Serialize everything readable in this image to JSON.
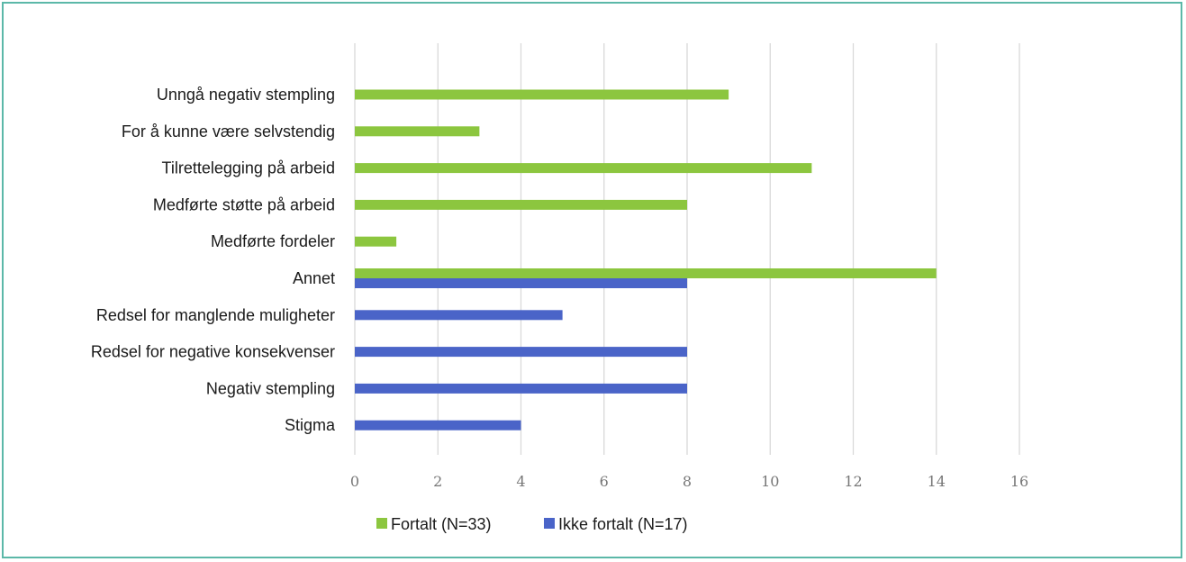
{
  "chart_data": {
    "type": "bar",
    "orientation": "horizontal",
    "categories": [
      "Unngå negativ stempling",
      "For å kunne være selvstendig",
      "Tilrettelegging på arbeid",
      "Medførte støtte på arbeid",
      "Medførte fordeler",
      "Annet",
      "Redsel for manglende muligheter",
      "Redsel for negative konsekvenser",
      "Negativ stempling",
      "Stigma"
    ],
    "series": [
      {
        "name": "Fortalt (N=33)",
        "color": "#8cc63f",
        "values": [
          9,
          3,
          11,
          8,
          1,
          14,
          null,
          null,
          null,
          null
        ]
      },
      {
        "name": "Ikke fortalt (N=17)",
        "color": "#4a64c8",
        "values": [
          null,
          null,
          null,
          null,
          null,
          8,
          5,
          8,
          8,
          4
        ]
      }
    ],
    "xlim": [
      0,
      16
    ],
    "xticks": [
      0,
      2,
      4,
      6,
      8,
      10,
      12,
      14,
      16
    ],
    "grid": "vertical",
    "legend_position": "bottom"
  }
}
